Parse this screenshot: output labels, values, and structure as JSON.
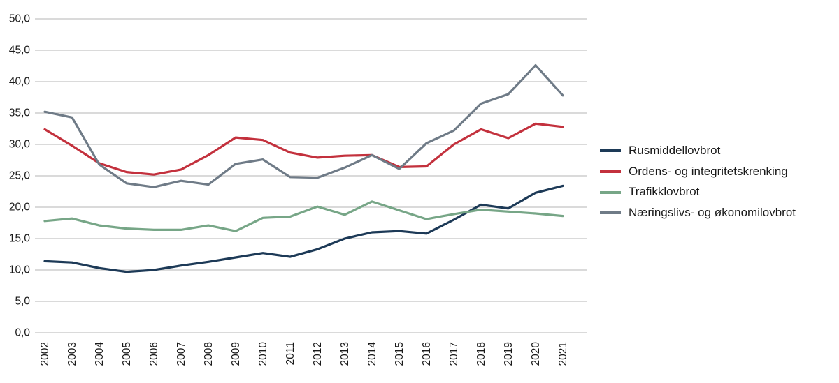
{
  "chart_data": {
    "type": "line",
    "title": "",
    "xlabel": "",
    "ylabel": "",
    "x": [
      2002,
      2003,
      2004,
      2005,
      2006,
      2007,
      2008,
      2009,
      2010,
      2011,
      2012,
      2013,
      2014,
      2015,
      2016,
      2017,
      2018,
      2019,
      2020,
      2021
    ],
    "series": [
      {
        "name": "Rusmiddellovbrot",
        "color": "#1d3a57",
        "values": [
          11.4,
          11.2,
          10.3,
          9.7,
          10.0,
          10.7,
          11.3,
          12.0,
          12.7,
          12.1,
          13.3,
          15.0,
          16.0,
          16.2,
          15.8,
          18.0,
          20.4,
          19.8,
          22.3,
          23.4
        ]
      },
      {
        "name": "Ordens- og integritetskrenking",
        "color": "#c3313d",
        "values": [
          32.4,
          29.8,
          27.0,
          25.6,
          25.2,
          26.0,
          28.3,
          31.1,
          30.7,
          28.7,
          27.9,
          28.2,
          28.3,
          26.4,
          26.5,
          30.0,
          32.4,
          31.0,
          33.3,
          32.8
        ]
      },
      {
        "name": "Trafikklovbrot",
        "color": "#77a687",
        "values": [
          17.8,
          18.2,
          17.1,
          16.6,
          16.4,
          16.4,
          17.1,
          16.2,
          18.3,
          18.5,
          20.1,
          18.8,
          20.9,
          19.5,
          18.1,
          18.9,
          19.6,
          19.3,
          19.0,
          18.6
        ]
      },
      {
        "name": "Næringslivs- og økonomilovbrot",
        "color": "#6f7b87",
        "values": [
          35.2,
          34.3,
          26.8,
          23.8,
          23.2,
          24.2,
          23.6,
          26.9,
          27.6,
          24.8,
          24.7,
          26.3,
          28.3,
          26.1,
          30.2,
          32.2,
          36.5,
          38.0,
          42.6,
          37.8
        ]
      }
    ],
    "ylim": [
      0,
      50
    ],
    "ytick_step": 5,
    "ytick_labels": [
      "0,0",
      "5,0",
      "10,0",
      "15,0",
      "20,0",
      "25,0",
      "30,0",
      "35,0",
      "40,0",
      "45,0",
      "50,0"
    ],
    "grid": true,
    "legend_position": "right",
    "grid_color": "#b5b5b5",
    "text_color": "#1a1a1a"
  }
}
